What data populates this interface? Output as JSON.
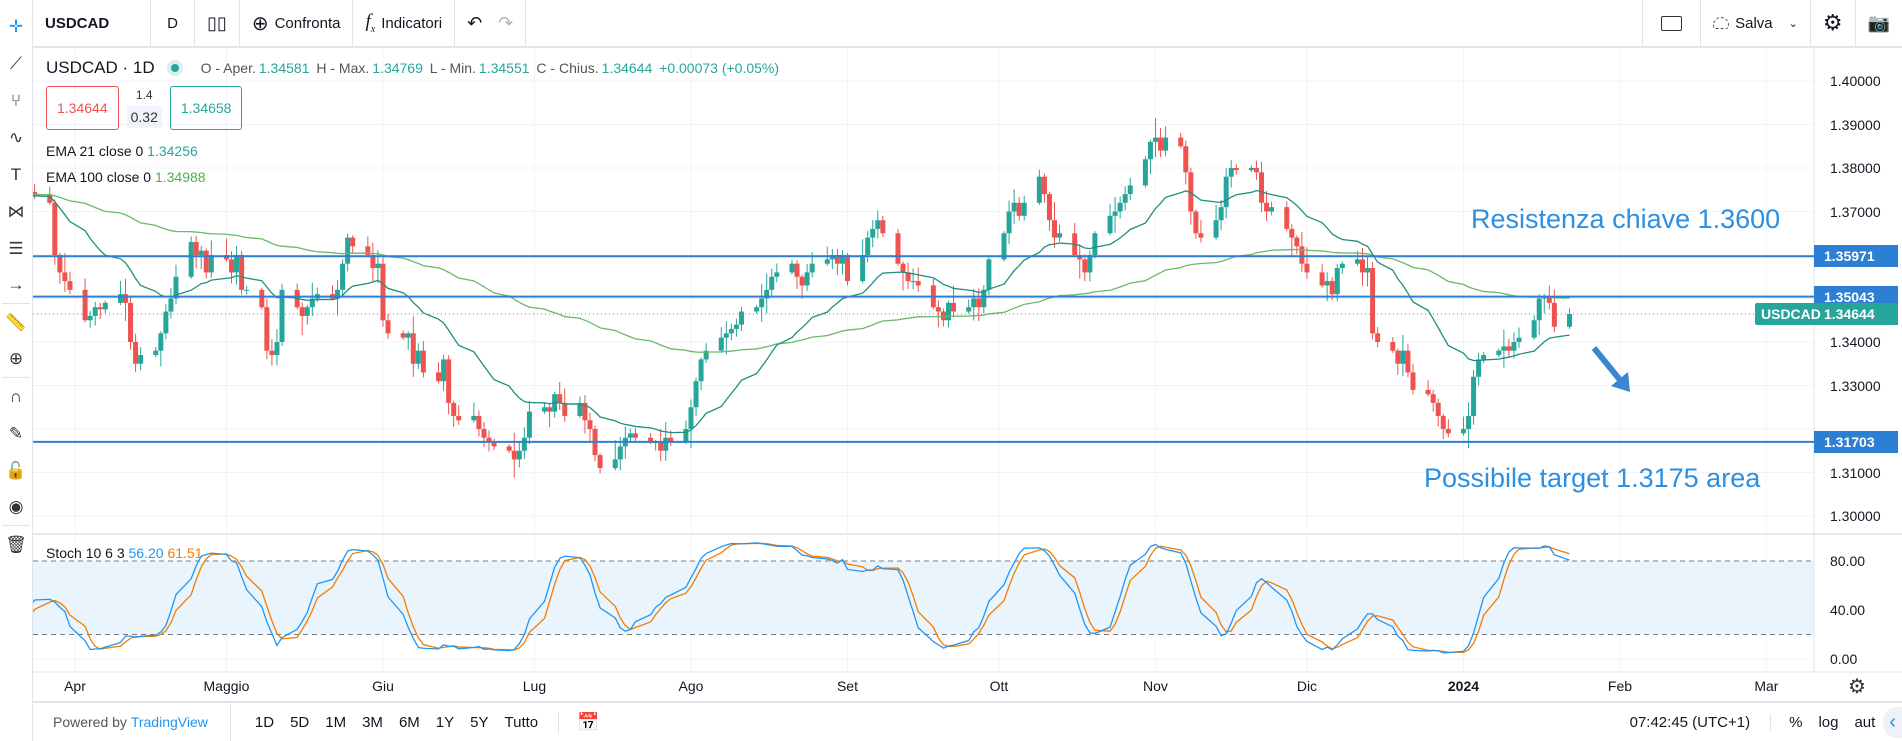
{
  "toolbar": {
    "symbol": "USDCAD",
    "interval": "D",
    "compare": "Confronta",
    "indicators": "Indicatori",
    "save": "Salva",
    "icons": [
      "candles-icon",
      "plus-circle-icon",
      "fx-icon",
      "undo-icon",
      "redo-icon",
      "rectangle-icon",
      "cloud-icon",
      "chevron-down-icon",
      "gear-icon",
      "camera-icon"
    ]
  },
  "left_tools": [
    "crosshair-icon",
    "trend-line-icon",
    "fork-icon",
    "curve-icon",
    "text-icon",
    "pattern-icon",
    "measure-icon",
    "arrow-icon",
    "ruler-icon",
    "zoom-icon",
    "magnet-icon",
    "lock-drawing-icon",
    "lock-icon",
    "eye-icon",
    "trash-icon"
  ],
  "legend": {
    "title": "USDCAD · 1D",
    "open_label": "O - Aper.",
    "open": "1.34581",
    "high_label": "H - Max.",
    "high": "1.34769",
    "low_label": "L - Min.",
    "low": "1.34551",
    "close_label": "C - Chius.",
    "close": "1.34644",
    "change": "+0.00073 (+0.05%)",
    "sell": "1.34644",
    "spread_top": "1.4",
    "spread": "0.32",
    "buy": "1.34658",
    "ema21_label": "EMA 21 close 0",
    "ema21": "1.34256",
    "ema100_label": "EMA 100 close 0",
    "ema100": "1.34988"
  },
  "stoch": {
    "label": "Stoch 10 6 3",
    "k": "56.20",
    "d": "61.51",
    "levels": [
      "80.00",
      "40.00",
      "0.00"
    ]
  },
  "annotations": {
    "resistance": "Resistenza chiave 1.3600",
    "target": "Possibile target 1.3175 area"
  },
  "price_axis": [
    "1.40000",
    "1.39000",
    "1.38000",
    "1.37000",
    "1.34000",
    "1.33000",
    "1.31000",
    "1.30000"
  ],
  "badges": [
    {
      "value": "1.35971"
    },
    {
      "value": "1.35043"
    },
    {
      "value": "1.31703"
    }
  ],
  "last_price": {
    "symbol": "USDCAD",
    "value": "1.34644"
  },
  "time_axis": [
    {
      "label": "Apr",
      "date": "2023-04-01"
    },
    {
      "label": "Maggio",
      "date": "2023-05-01"
    },
    {
      "label": "Giu",
      "date": "2023-06-01"
    },
    {
      "label": "Lug",
      "date": "2023-07-01"
    },
    {
      "label": "Ago",
      "date": "2023-08-01"
    },
    {
      "label": "Set",
      "date": "2023-09-01"
    },
    {
      "label": "Ott",
      "date": "2023-10-01"
    },
    {
      "label": "Nov",
      "date": "2023-11-01"
    },
    {
      "label": "Dic",
      "date": "2023-12-01"
    },
    {
      "label": "2024",
      "date": "2024-01-01"
    },
    {
      "label": "Feb",
      "date": "2024-02-01"
    },
    {
      "label": "Mar",
      "date": "2024-03-01"
    }
  ],
  "bottom": {
    "powered": "Powered by",
    "brand": "TradingView",
    "ranges": [
      "1D",
      "5D",
      "1M",
      "3M",
      "6M",
      "1Y",
      "5Y",
      "Tutto"
    ],
    "time": "07:42:45 (UTC+1)",
    "pct": "%",
    "log": "log",
    "auto": "aut"
  },
  "colors": {
    "up": "#26a69a",
    "down": "#ef5350",
    "ema21": "#1e8f80",
    "ema100": "#6cb86c",
    "lines": "#2d7fd3",
    "k": "#2196f3",
    "d": "#f57c00"
  },
  "chart_data": {
    "type": "candlestick",
    "ylim": [
      1.295,
      1.405
    ],
    "stoch_ylim": [
      0,
      100
    ],
    "hlines": [
      1.35971,
      1.35043,
      1.31703
    ],
    "last": 1.34644,
    "weeks": [
      {
        "week": "2023-03-20",
        "closes": [
          1.374,
          1.372,
          1.37,
          1.3745,
          1.374
        ]
      },
      {
        "week": "2023-03-27",
        "closes": [
          1.372,
          1.36,
          1.356,
          1.354,
          1.352
        ]
      },
      {
        "week": "2023-04-03",
        "closes": [
          1.345,
          1.346,
          1.348,
          1.3475,
          1.349
        ]
      },
      {
        "week": "2023-04-10",
        "closes": [
          1.351,
          1.349,
          1.34,
          1.335,
          1.337
        ]
      },
      {
        "week": "2023-04-17",
        "closes": [
          1.338,
          1.342,
          1.347,
          1.35,
          1.355
        ]
      },
      {
        "week": "2023-04-24",
        "closes": [
          1.363,
          1.36,
          1.361,
          1.356,
          1.36
        ]
      },
      {
        "week": "2023-05-01",
        "closes": [
          1.359,
          1.356,
          1.36,
          1.352,
          1.352
        ]
      },
      {
        "week": "2023-05-08",
        "closes": [
          1.348,
          1.338,
          1.337,
          1.34,
          1.352
        ]
      },
      {
        "week": "2023-05-15",
        "closes": [
          1.348,
          1.346,
          1.348,
          1.35,
          1.351
        ]
      },
      {
        "week": "2023-05-22",
        "closes": [
          1.35,
          1.352,
          1.358,
          1.364,
          1.362
        ]
      },
      {
        "week": "2023-05-29",
        "closes": [
          1.36,
          1.357,
          1.358,
          1.345,
          1.342
        ]
      },
      {
        "week": "2023-06-05",
        "closes": [
          1.341,
          1.342,
          1.335,
          1.338,
          1.333
        ]
      },
      {
        "week": "2023-06-12",
        "closes": [
          1.331,
          1.336,
          1.326,
          1.323,
          1.322
        ]
      },
      {
        "week": "2023-06-19",
        "closes": [
          1.323,
          1.32,
          1.318,
          1.317,
          1.316
        ]
      },
      {
        "week": "2023-06-26",
        "closes": [
          1.315,
          1.313,
          1.315,
          1.318,
          1.324
        ]
      },
      {
        "week": "2023-07-03",
        "closes": [
          1.325,
          1.324,
          1.328,
          1.326,
          1.323
        ]
      },
      {
        "week": "2023-07-10",
        "closes": [
          1.326,
          1.322,
          1.32,
          1.314,
          1.311
        ]
      },
      {
        "week": "2023-07-17",
        "closes": [
          1.313,
          1.316,
          1.318,
          1.319,
          1.318
        ]
      },
      {
        "week": "2023-07-24",
        "closes": [
          1.317,
          1.317,
          1.315,
          1.318,
          1.317
        ]
      },
      {
        "week": "2023-07-31",
        "closes": [
          1.32,
          1.325,
          1.331,
          1.336,
          1.338
        ]
      },
      {
        "week": "2023-08-07",
        "closes": [
          1.341,
          1.342,
          1.343,
          1.344,
          1.347
        ]
      },
      {
        "week": "2023-08-14",
        "closes": [
          1.348,
          1.35,
          1.352,
          1.355,
          1.356
        ]
      },
      {
        "week": "2023-08-21",
        "closes": [
          1.358,
          1.355,
          1.353,
          1.356,
          1.358
        ]
      },
      {
        "week": "2023-08-28",
        "closes": [
          1.359,
          1.36,
          1.358,
          1.36,
          1.354
        ]
      },
      {
        "week": "2023-09-04",
        "closes": [
          1.36,
          1.364,
          1.366,
          1.368,
          1.365
        ]
      },
      {
        "week": "2023-09-11",
        "closes": [
          1.358,
          1.356,
          1.354,
          1.354,
          1.353
        ]
      },
      {
        "week": "2023-09-18",
        "closes": [
          1.348,
          1.347,
          1.345,
          1.349,
          1.347
        ]
      },
      {
        "week": "2023-09-25",
        "closes": [
          1.348,
          1.35,
          1.348,
          1.352,
          1.359
        ]
      },
      {
        "week": "2023-10-02",
        "closes": [
          1.365,
          1.37,
          1.372,
          1.369,
          1.372
        ]
      },
      {
        "week": "2023-10-09",
        "closes": [
          1.378,
          1.374,
          1.368,
          1.364,
          1.365
        ]
      },
      {
        "week": "2023-10-16",
        "closes": [
          1.36,
          1.359,
          1.356,
          1.36,
          1.365
        ]
      },
      {
        "week": "2023-10-23",
        "closes": [
          1.369,
          1.37,
          1.372,
          1.374,
          1.376
        ]
      },
      {
        "week": "2023-10-30",
        "closes": [
          1.382,
          1.386,
          1.387,
          1.384,
          1.387
        ]
      },
      {
        "week": "2023-11-06",
        "closes": [
          1.385,
          1.379,
          1.37,
          1.365,
          1.364
        ]
      },
      {
        "week": "2023-11-13",
        "closes": [
          1.368,
          1.371,
          1.378,
          1.38,
          1.3795
        ]
      },
      {
        "week": "2023-11-20",
        "closes": [
          1.38,
          1.379,
          1.372,
          1.37,
          1.371
        ]
      },
      {
        "week": "2023-11-27",
        "closes": [
          1.366,
          1.364,
          1.362,
          1.358,
          1.356
        ]
      },
      {
        "week": "2023-12-04",
        "closes": [
          1.353,
          1.354,
          1.351,
          1.357,
          1.358
        ]
      },
      {
        "week": "2023-12-11",
        "closes": [
          1.359,
          1.356,
          1.357,
          1.342,
          1.34
        ]
      },
      {
        "week": "2023-12-18",
        "closes": [
          1.338,
          1.335,
          1.338,
          1.333,
          1.329
        ]
      },
      {
        "week": "2023-12-25",
        "closes": [
          1.328,
          1.326,
          1.323,
          1.32,
          1.319
        ]
      },
      {
        "week": "2024-01-01",
        "closes": [
          1.32,
          1.323,
          1.332,
          1.336,
          1.337
        ]
      },
      {
        "week": "2024-01-08",
        "closes": [
          1.338,
          1.339,
          1.338,
          1.34,
          1.341
        ]
      },
      {
        "week": "2024-01-15",
        "closes": [
          1.345,
          1.35,
          1.3505,
          1.349,
          1.3435
        ]
      },
      {
        "week": "2024-01-22",
        "closes": [
          1.34644
        ]
      }
    ]
  }
}
